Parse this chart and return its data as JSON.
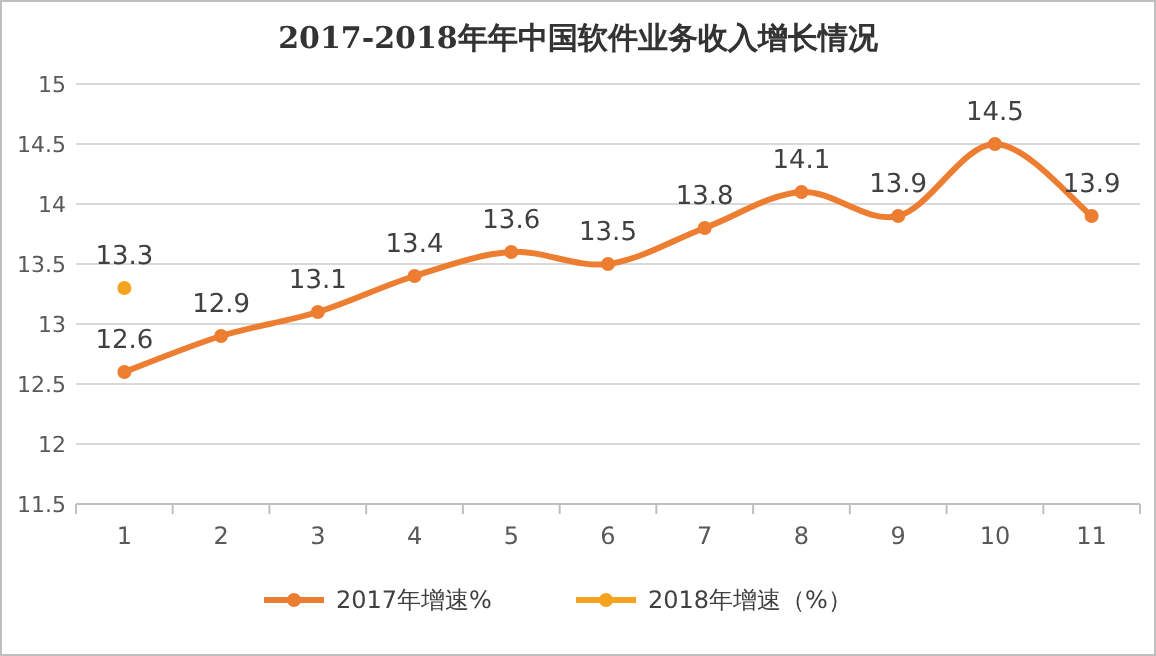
{
  "chart_data": {
    "type": "line",
    "title": "2017-2018年年中国软件业务收入增长情况",
    "categories": [
      "1",
      "2",
      "3",
      "4",
      "5",
      "6",
      "7",
      "8",
      "9",
      "10",
      "11"
    ],
    "series": [
      {
        "name": "2017年增速%",
        "color": "#ed7d31",
        "values": [
          12.6,
          12.9,
          13.1,
          13.4,
          13.6,
          13.5,
          13.8,
          14.1,
          13.9,
          14.5,
          13.9
        ]
      },
      {
        "name": "2018年增速（%）",
        "color": "#f5a31f",
        "values": [
          13.3,
          null,
          null,
          null,
          null,
          null,
          null,
          null,
          null,
          null,
          null
        ]
      }
    ],
    "ylim": [
      11.5,
      15
    ],
    "yticks": [
      11.5,
      12,
      12.5,
      13,
      13.5,
      14,
      14.5,
      15
    ],
    "grid": "y",
    "legend": "bottom",
    "marker": "circle",
    "data_labels": true
  }
}
